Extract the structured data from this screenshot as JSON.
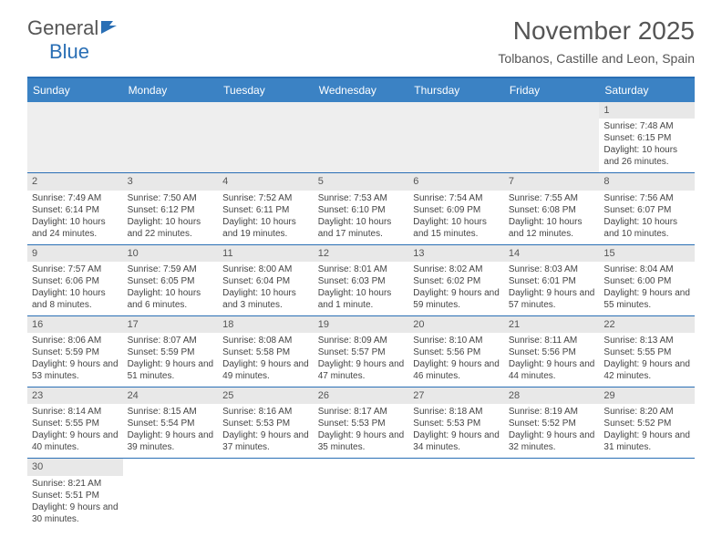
{
  "logo": {
    "part1": "General",
    "part2": "Blue"
  },
  "title": "November 2025",
  "location": "Tolbanos, Castille and Leon, Spain",
  "colors": {
    "header_bar": "#3b82c4",
    "border": "#2a6fb5",
    "daynum_bg": "#e8e8e8",
    "empty_bg": "#eeeeee",
    "text": "#444444",
    "title_text": "#555555"
  },
  "weekdays": [
    "Sunday",
    "Monday",
    "Tuesday",
    "Wednesday",
    "Thursday",
    "Friday",
    "Saturday"
  ],
  "weeks": [
    [
      null,
      null,
      null,
      null,
      null,
      null,
      {
        "n": "1",
        "sr": "7:48 AM",
        "ss": "6:15 PM",
        "dl": "10 hours and 26 minutes."
      }
    ],
    [
      {
        "n": "2",
        "sr": "7:49 AM",
        "ss": "6:14 PM",
        "dl": "10 hours and 24 minutes."
      },
      {
        "n": "3",
        "sr": "7:50 AM",
        "ss": "6:12 PM",
        "dl": "10 hours and 22 minutes."
      },
      {
        "n": "4",
        "sr": "7:52 AM",
        "ss": "6:11 PM",
        "dl": "10 hours and 19 minutes."
      },
      {
        "n": "5",
        "sr": "7:53 AM",
        "ss": "6:10 PM",
        "dl": "10 hours and 17 minutes."
      },
      {
        "n": "6",
        "sr": "7:54 AM",
        "ss": "6:09 PM",
        "dl": "10 hours and 15 minutes."
      },
      {
        "n": "7",
        "sr": "7:55 AM",
        "ss": "6:08 PM",
        "dl": "10 hours and 12 minutes."
      },
      {
        "n": "8",
        "sr": "7:56 AM",
        "ss": "6:07 PM",
        "dl": "10 hours and 10 minutes."
      }
    ],
    [
      {
        "n": "9",
        "sr": "7:57 AM",
        "ss": "6:06 PM",
        "dl": "10 hours and 8 minutes."
      },
      {
        "n": "10",
        "sr": "7:59 AM",
        "ss": "6:05 PM",
        "dl": "10 hours and 6 minutes."
      },
      {
        "n": "11",
        "sr": "8:00 AM",
        "ss": "6:04 PM",
        "dl": "10 hours and 3 minutes."
      },
      {
        "n": "12",
        "sr": "8:01 AM",
        "ss": "6:03 PM",
        "dl": "10 hours and 1 minute."
      },
      {
        "n": "13",
        "sr": "8:02 AM",
        "ss": "6:02 PM",
        "dl": "9 hours and 59 minutes."
      },
      {
        "n": "14",
        "sr": "8:03 AM",
        "ss": "6:01 PM",
        "dl": "9 hours and 57 minutes."
      },
      {
        "n": "15",
        "sr": "8:04 AM",
        "ss": "6:00 PM",
        "dl": "9 hours and 55 minutes."
      }
    ],
    [
      {
        "n": "16",
        "sr": "8:06 AM",
        "ss": "5:59 PM",
        "dl": "9 hours and 53 minutes."
      },
      {
        "n": "17",
        "sr": "8:07 AM",
        "ss": "5:59 PM",
        "dl": "9 hours and 51 minutes."
      },
      {
        "n": "18",
        "sr": "8:08 AM",
        "ss": "5:58 PM",
        "dl": "9 hours and 49 minutes."
      },
      {
        "n": "19",
        "sr": "8:09 AM",
        "ss": "5:57 PM",
        "dl": "9 hours and 47 minutes."
      },
      {
        "n": "20",
        "sr": "8:10 AM",
        "ss": "5:56 PM",
        "dl": "9 hours and 46 minutes."
      },
      {
        "n": "21",
        "sr": "8:11 AM",
        "ss": "5:56 PM",
        "dl": "9 hours and 44 minutes."
      },
      {
        "n": "22",
        "sr": "8:13 AM",
        "ss": "5:55 PM",
        "dl": "9 hours and 42 minutes."
      }
    ],
    [
      {
        "n": "23",
        "sr": "8:14 AM",
        "ss": "5:55 PM",
        "dl": "9 hours and 40 minutes."
      },
      {
        "n": "24",
        "sr": "8:15 AM",
        "ss": "5:54 PM",
        "dl": "9 hours and 39 minutes."
      },
      {
        "n": "25",
        "sr": "8:16 AM",
        "ss": "5:53 PM",
        "dl": "9 hours and 37 minutes."
      },
      {
        "n": "26",
        "sr": "8:17 AM",
        "ss": "5:53 PM",
        "dl": "9 hours and 35 minutes."
      },
      {
        "n": "27",
        "sr": "8:18 AM",
        "ss": "5:53 PM",
        "dl": "9 hours and 34 minutes."
      },
      {
        "n": "28",
        "sr": "8:19 AM",
        "ss": "5:52 PM",
        "dl": "9 hours and 32 minutes."
      },
      {
        "n": "29",
        "sr": "8:20 AM",
        "ss": "5:52 PM",
        "dl": "9 hours and 31 minutes."
      }
    ],
    [
      {
        "n": "30",
        "sr": "8:21 AM",
        "ss": "5:51 PM",
        "dl": "9 hours and 30 minutes."
      },
      null,
      null,
      null,
      null,
      null,
      null
    ]
  ],
  "labels": {
    "sunrise": "Sunrise: ",
    "sunset": "Sunset: ",
    "daylight": "Daylight: "
  }
}
